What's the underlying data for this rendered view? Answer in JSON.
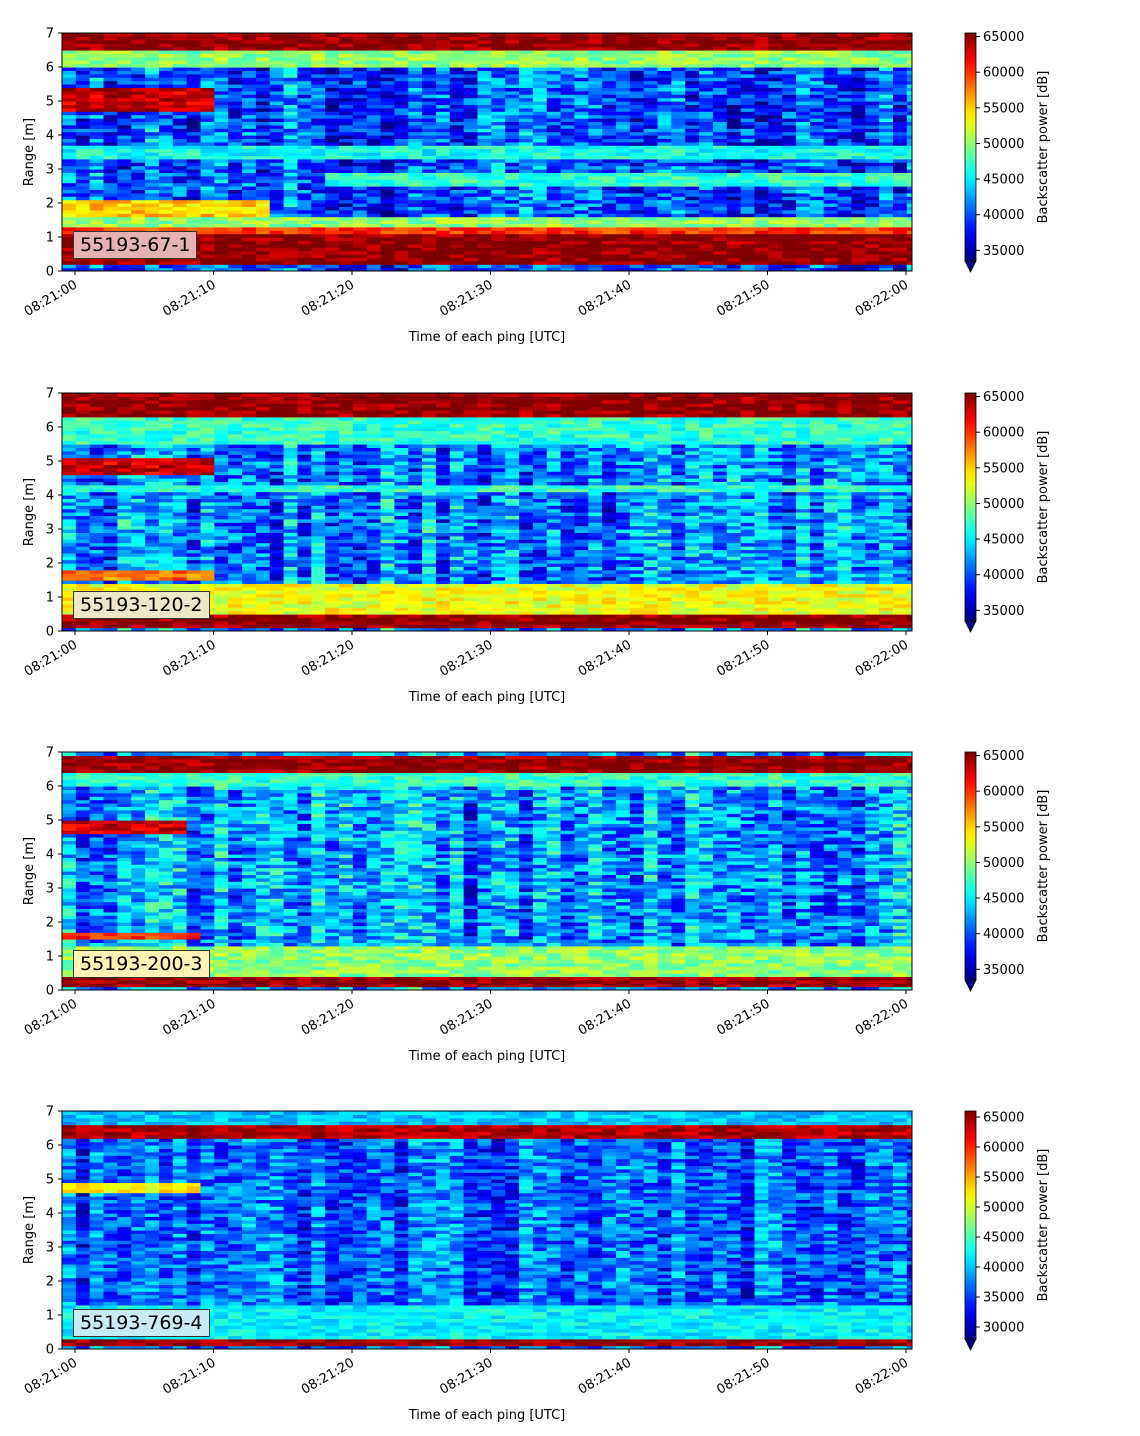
{
  "chart_data": [
    {
      "type": "heatmap",
      "label": "55193-67-1",
      "label_bg": "#e6b3b3",
      "xlabel": "Time of each ping [UTC]",
      "ylabel": "Range [m]",
      "colorbar_label": "Backscatter power [dB]",
      "x_ticks": [
        "08:21:00",
        "08:21:10",
        "08:21:20",
        "08:21:30",
        "08:21:40",
        "08:21:50",
        "08:22:00"
      ],
      "y_ticks": [
        0,
        1,
        2,
        3,
        4,
        5,
        6,
        7
      ],
      "ylim": [
        0,
        7
      ],
      "clim": [
        33500,
        65500
      ],
      "cbar_ticks": [
        35000,
        40000,
        45000,
        50000,
        55000,
        60000,
        65000
      ],
      "colormap": "jet",
      "bands": [
        {
          "from": 0.2,
          "to": 1.1,
          "value": 65000
        },
        {
          "from": 1.1,
          "to": 1.3,
          "value": 60000
        },
        {
          "from": 1.3,
          "to": 1.6,
          "value": 50000
        },
        {
          "from": 1.6,
          "to": 2.1,
          "value": 55000,
          "until_s": 14
        },
        {
          "from": 2.5,
          "to": 2.9,
          "value": 47000,
          "after_s": 18
        },
        {
          "from": 3.3,
          "to": 3.7,
          "value": 46000
        },
        {
          "from": 4.7,
          "to": 5.4,
          "value": 63000,
          "until_s": 10
        },
        {
          "from": 6.0,
          "to": 6.5,
          "value": 50000
        },
        {
          "from": 6.5,
          "to": 7.0,
          "value": 65000
        }
      ],
      "base_value": 40000
    },
    {
      "type": "heatmap",
      "label": "55193-120-2",
      "label_bg": "#f0e6c8",
      "xlabel": "Time of each ping [UTC]",
      "ylabel": "Range [m]",
      "colorbar_label": "Backscatter power [dB]",
      "x_ticks": [
        "08:21:00",
        "08:21:10",
        "08:21:20",
        "08:21:30",
        "08:21:40",
        "08:21:50",
        "08:22:00"
      ],
      "y_ticks": [
        0,
        1,
        2,
        3,
        4,
        5,
        6,
        7
      ],
      "ylim": [
        0,
        7
      ],
      "clim": [
        33500,
        65500
      ],
      "cbar_ticks": [
        35000,
        40000,
        45000,
        50000,
        55000,
        60000,
        65000
      ],
      "colormap": "jet",
      "bands": [
        {
          "from": 0.1,
          "to": 0.5,
          "value": 65000
        },
        {
          "from": 0.5,
          "to": 1.4,
          "value": 53000
        },
        {
          "from": 1.5,
          "to": 1.8,
          "value": 58000,
          "until_s": 10
        },
        {
          "from": 4.1,
          "to": 4.3,
          "value": 47000
        },
        {
          "from": 4.6,
          "to": 5.1,
          "value": 63000,
          "until_s": 10
        },
        {
          "from": 5.5,
          "to": 6.3,
          "value": 47000
        },
        {
          "from": 6.3,
          "to": 7.0,
          "value": 65000
        }
      ],
      "base_value": 41500
    },
    {
      "type": "heatmap",
      "label": "55193-200-3",
      "label_bg": "#fff2b3",
      "xlabel": "Time of each ping [UTC]",
      "ylabel": "Range [m]",
      "colorbar_label": "Backscatter power [dB]",
      "x_ticks": [
        "08:21:00",
        "08:21:10",
        "08:21:20",
        "08:21:30",
        "08:21:40",
        "08:21:50",
        "08:22:00"
      ],
      "y_ticks": [
        0,
        1,
        2,
        3,
        4,
        5,
        6,
        7
      ],
      "ylim": [
        0,
        7
      ],
      "clim": [
        33500,
        65500
      ],
      "cbar_ticks": [
        35000,
        40000,
        45000,
        50000,
        55000,
        60000,
        65000
      ],
      "colormap": "jet",
      "bands": [
        {
          "from": 0.1,
          "to": 0.4,
          "value": 65000
        },
        {
          "from": 0.4,
          "to": 1.3,
          "value": 50000
        },
        {
          "from": 1.5,
          "to": 1.7,
          "value": 60000,
          "until_s": 9
        },
        {
          "from": 4.6,
          "to": 5.0,
          "value": 63000,
          "until_s": 8
        },
        {
          "from": 6.0,
          "to": 6.4,
          "value": 47000
        },
        {
          "from": 6.4,
          "to": 6.9,
          "value": 65000
        }
      ],
      "base_value": 42000
    },
    {
      "type": "heatmap",
      "label": "55193-769-4",
      "label_bg": "#c8ecf5",
      "xlabel": "Time of each ping [UTC]",
      "ylabel": "Range [m]",
      "colorbar_label": "Backscatter power [dB]",
      "x_ticks": [
        "08:21:00",
        "08:21:10",
        "08:21:20",
        "08:21:30",
        "08:21:40",
        "08:21:50",
        "08:22:00"
      ],
      "y_ticks": [
        0,
        1,
        2,
        3,
        4,
        5,
        6,
        7
      ],
      "ylim": [
        0,
        7
      ],
      "clim": [
        28000,
        66000
      ],
      "cbar_ticks": [
        30000,
        35000,
        40000,
        45000,
        50000,
        55000,
        60000,
        65000
      ],
      "colormap": "jet",
      "bands": [
        {
          "from": 0.15,
          "to": 0.35,
          "value": 65000
        },
        {
          "from": 0.35,
          "to": 1.3,
          "value": 42000
        },
        {
          "from": 4.6,
          "to": 4.9,
          "value": 52000,
          "until_s": 9
        },
        {
          "from": 6.2,
          "to": 6.6,
          "value": 64000
        },
        {
          "from": 6.6,
          "to": 7.0,
          "value": 40000
        }
      ],
      "base_value": 36000
    }
  ]
}
